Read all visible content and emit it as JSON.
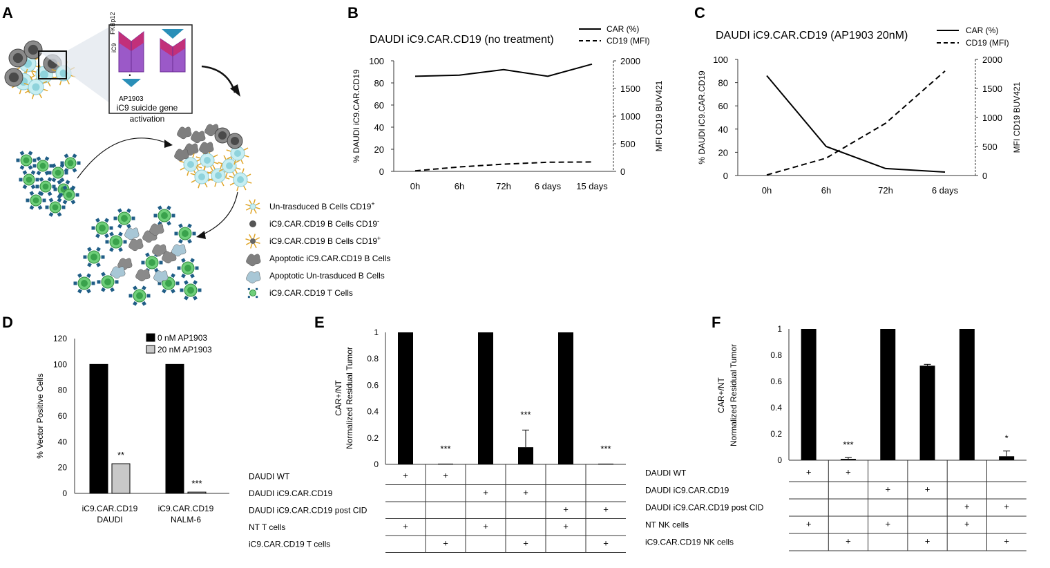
{
  "panel_letters": {
    "a": "A",
    "b": "B",
    "c": "C",
    "d": "D",
    "e": "E",
    "f": "F"
  },
  "panelA": {
    "inset_labels": {
      "ic9": "iC9",
      "fkbp12": "FKBp12",
      "ap1903": "AP1903",
      "caption_line1": "iC9 suicide gene",
      "caption_line2": "activation"
    },
    "legend": [
      {
        "label": "Un-trasduced B Cells CD19",
        "sup": "+",
        "icon": "light-blue-cell-icon",
        "color": "#aee0e6"
      },
      {
        "label": "iC9.CAR.CD19 B Cells CD19",
        "sup": "-",
        "icon": "dark-gray-cell-icon",
        "color": "#555555"
      },
      {
        "label": "iC9.CAR.CD19 B Cells CD19",
        "sup": "+",
        "icon": "dark-cell-with-antigen-icon",
        "color": "#6d6d6d"
      },
      {
        "label": "Apoptotic iC9.CAR.CD19 B Cells",
        "sup": "",
        "icon": "apoptotic-gray-cell-icon",
        "color": "#8a8a8a"
      },
      {
        "label": "Apoptotic Un-trasduced B Cells",
        "sup": "",
        "icon": "apoptotic-light-blue-cell-icon",
        "color": "#a8c7d6"
      },
      {
        "label": "iC9.CAR.CD19 T Cells",
        "sup": "",
        "icon": "green-t-cell-icon",
        "color": "#5cbf6a"
      }
    ],
    "colors": {
      "light_cell": "#c7eef2",
      "dark_cell": "#4a4a4a",
      "green_cell": "#6fcf7a",
      "green_dark": "#2e8b3e",
      "antibody": "#1f5d86",
      "spike": "#e0a528",
      "purple": "#9b59c8",
      "magenta": "#c2307a",
      "triangle": "#2a8fb8"
    }
  },
  "chart_data": [
    {
      "id": "B",
      "type": "line",
      "title": "DAUDI iC9.CAR.CD19 (no treatment)",
      "categories": [
        "0h",
        "6h",
        "72h",
        "6 days",
        "15 days"
      ],
      "series": [
        {
          "name": "CAR (%)",
          "axis": "left",
          "style": "solid",
          "values": [
            86,
            87,
            92,
            86,
            97
          ]
        },
        {
          "name": "CD19 (MFI)",
          "axis": "right",
          "style": "dashed",
          "values": [
            10,
            80,
            130,
            165,
            170
          ]
        }
      ],
      "ylabel": "% DAUDI iC9.CAR.CD19",
      "ylabel2": "MFI CD19 BUV421",
      "ylim": [
        0,
        100
      ],
      "yticks": [
        0,
        20,
        40,
        60,
        80,
        100
      ],
      "y2lim": [
        0,
        2000
      ],
      "y2ticks": [
        0,
        500,
        1000,
        1500,
        2000
      ],
      "legend": "top-right"
    },
    {
      "id": "C",
      "type": "line",
      "title": "DAUDI iC9.CAR.CD19 (AP1903 20nM)",
      "categories": [
        "0h",
        "6h",
        "72h",
        "6 days"
      ],
      "series": [
        {
          "name": "CAR (%)",
          "axis": "left",
          "style": "solid",
          "values": [
            86,
            25,
            6,
            3
          ]
        },
        {
          "name": "CD19 (MFI)",
          "axis": "right",
          "style": "dashed",
          "values": [
            10,
            300,
            900,
            1800
          ]
        }
      ],
      "ylabel": "% DAUDI iC9.CAR.CD19",
      "ylabel2": "MFI CD19 BUV421",
      "ylim": [
        0,
        100
      ],
      "yticks": [
        0,
        20,
        40,
        60,
        80,
        100
      ],
      "y2lim": [
        0,
        2000
      ],
      "y2ticks": [
        0,
        500,
        1000,
        1500,
        2000
      ],
      "legend": "top-right"
    },
    {
      "id": "D",
      "type": "bar",
      "categories": [
        [
          "iC9.CAR.CD19",
          "DAUDI"
        ],
        [
          "iC9.CAR.CD19",
          "NALM-6"
        ]
      ],
      "series": [
        {
          "name": "0 nM AP1903",
          "color": "#000000",
          "values": [
            100,
            100
          ]
        },
        {
          "name": "20 nM AP1903",
          "color": "#c8c8c8",
          "values": [
            23,
            1
          ]
        }
      ],
      "significance": [
        "**",
        "***"
      ],
      "ylabel": "% Vector Positive Cells",
      "ylim": [
        0,
        120
      ],
      "yticks": [
        0,
        20,
        40,
        60,
        80,
        100,
        120
      ],
      "legend": "top-right"
    },
    {
      "id": "E",
      "type": "bar",
      "values": [
        1,
        0,
        1,
        0.13,
        1,
        0
      ],
      "errors": [
        0,
        0,
        0,
        0.13,
        0,
        0
      ],
      "significance": [
        "",
        "***",
        "",
        "***",
        "",
        "***"
      ],
      "ylabel": "Normalized Residual Tumor",
      "ylabel2": "CAR+/NT",
      "ylim": [
        0,
        1
      ],
      "yticks": [
        0,
        0.2,
        0.4,
        0.6,
        0.8,
        1
      ],
      "ytick_labels": [
        "0",
        "0.2",
        "0.4",
        "0.6",
        "0.8",
        "1"
      ],
      "table": {
        "rows": [
          {
            "label": "DAUDI WT",
            "marks": [
              1,
              1,
              0,
              0,
              0,
              0
            ]
          },
          {
            "label": "DAUDI iC9.CAR.CD19",
            "marks": [
              0,
              0,
              1,
              1,
              0,
              0
            ]
          },
          {
            "label": "DAUDI iC9.CAR.CD19 post CID",
            "marks": [
              0,
              0,
              0,
              0,
              1,
              1
            ]
          },
          {
            "label": "NT T cells",
            "marks": [
              1,
              0,
              1,
              0,
              1,
              0
            ]
          },
          {
            "label": "iC9.CAR.CD19 T cells",
            "marks": [
              0,
              1,
              0,
              1,
              0,
              1
            ]
          }
        ],
        "mark": "+"
      }
    },
    {
      "id": "F",
      "type": "bar",
      "values": [
        1,
        0.01,
        1,
        0.72,
        1,
        0.03
      ],
      "errors": [
        0,
        0.01,
        0,
        0.01,
        0,
        0.04
      ],
      "significance": [
        "",
        "***",
        "",
        "",
        "",
        "*"
      ],
      "ylabel": "Normalized Residual Tumor",
      "ylabel2": "CAR+/NT",
      "ylim": [
        0,
        1
      ],
      "yticks": [
        0,
        0.2,
        0.4,
        0.6,
        0.8,
        1
      ],
      "ytick_labels": [
        "0",
        "0.2",
        "0.4",
        "0.6",
        "0.8",
        "1"
      ],
      "table": {
        "rows": [
          {
            "label": "DAUDI WT",
            "marks": [
              1,
              1,
              0,
              0,
              0,
              0
            ]
          },
          {
            "label": "DAUDI iC9.CAR.CD19",
            "marks": [
              0,
              0,
              1,
              1,
              0,
              0
            ]
          },
          {
            "label": "DAUDI iC9.CAR.CD19 post CID",
            "marks": [
              0,
              0,
              0,
              0,
              1,
              1
            ]
          },
          {
            "label": "NT NK cells",
            "marks": [
              1,
              0,
              1,
              0,
              1,
              0
            ]
          },
          {
            "label": "iC9.CAR.CD19 NK cells",
            "marks": [
              0,
              1,
              0,
              1,
              0,
              1
            ]
          }
        ],
        "mark": "+"
      }
    }
  ]
}
